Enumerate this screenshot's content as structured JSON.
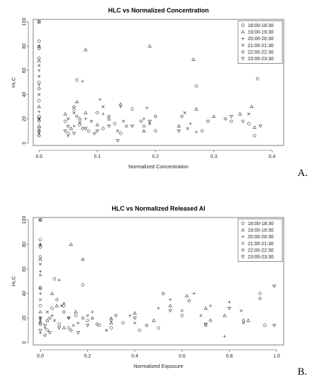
{
  "chart_data": [
    {
      "type": "scatter",
      "title": "HLC vs Normalized Concentration",
      "xlabel": "Normalized Concentration",
      "ylabel": "HLC",
      "xlim": [
        -0.01,
        0.42
      ],
      "ylim": [
        -2,
        102
      ],
      "xticks": [
        0.0,
        0.1,
        0.2,
        0.3,
        0.4
      ],
      "xtick_labels": [
        "0.0",
        "0.1",
        "0.2",
        "0.3",
        "0.4"
      ],
      "yticks": [
        0,
        20,
        40,
        60,
        80,
        100
      ],
      "ytick_labels": [
        "0",
        "20",
        "40",
        "60",
        "80",
        "100"
      ],
      "legend_position": "top-right",
      "panel_label": "A.",
      "series": [
        {
          "name": "18:00-18:30",
          "marker": "circle",
          "points": [
            [
              0,
              84
            ],
            [
              0,
              70
            ],
            [
              0,
              50
            ],
            [
              0,
              35
            ],
            [
              0,
              22
            ],
            [
              0,
              10
            ],
            [
              0.045,
              18
            ],
            [
              0.05,
              8
            ],
            [
              0.06,
              28
            ],
            [
              0.065,
              52
            ],
            [
              0.07,
              15
            ],
            [
              0.085,
              10
            ],
            [
              0.1,
              25
            ],
            [
              0.11,
              12
            ],
            [
              0.13,
              16
            ],
            [
              0.14,
              8
            ],
            [
              0.16,
              28
            ],
            [
              0.18,
              14
            ],
            [
              0.2,
              10
            ],
            [
              0.27,
              47
            ],
            [
              0.28,
              10
            ],
            [
              0.33,
              18
            ],
            [
              0.36,
              16
            ],
            [
              0.375,
              53
            ],
            [
              0.37,
              6
            ]
          ]
        },
        {
          "name": "19:00-19:30",
          "marker": "triangle-up",
          "points": [
            [
              0,
              100
            ],
            [
              0,
              80
            ],
            [
              0,
              68
            ],
            [
              0,
              30
            ],
            [
              0,
              14
            ],
            [
              0.045,
              24
            ],
            [
              0.055,
              12
            ],
            [
              0.065,
              34
            ],
            [
              0.07,
              20
            ],
            [
              0.08,
              77
            ],
            [
              0.08,
              25
            ],
            [
              0.1,
              15
            ],
            [
              0.12,
              20
            ],
            [
              0.14,
              32
            ],
            [
              0.19,
              80
            ],
            [
              0.18,
              10
            ],
            [
              0.24,
              14
            ],
            [
              0.265,
              69
            ],
            [
              0.27,
              28
            ],
            [
              0.3,
              22
            ],
            [
              0.345,
              24
            ],
            [
              0.365,
              30
            ],
            [
              0.37,
              13
            ]
          ]
        },
        {
          "name": "20:00-20:30",
          "marker": "plus",
          "points": [
            [
              0,
              80
            ],
            [
              0,
              60
            ],
            [
              0,
              48
            ],
            [
              0,
              26
            ],
            [
              0,
              10
            ],
            [
              0.05,
              6
            ],
            [
              0.06,
              14
            ],
            [
              0.075,
              51
            ],
            [
              0.08,
              20
            ],
            [
              0.105,
              36
            ],
            [
              0.11,
              24
            ],
            [
              0.14,
              30
            ],
            [
              0.185,
              29
            ],
            [
              0.18,
              20
            ],
            [
              0.26,
              16
            ],
            [
              0.27,
              9
            ]
          ]
        },
        {
          "name": "21:00-21:30",
          "marker": "x",
          "points": [
            [
              0,
              64
            ],
            [
              0,
              55
            ],
            [
              0,
              40
            ],
            [
              0,
              20
            ],
            [
              0,
              8
            ],
            [
              0.05,
              20
            ],
            [
              0.06,
              25
            ],
            [
              0.07,
              17
            ],
            [
              0.09,
              18
            ],
            [
              0.11,
              30
            ],
            [
              0.135,
              10
            ],
            [
              0.145,
              18
            ],
            [
              0.19,
              16
            ],
            [
              0.255,
              12
            ],
            [
              0.25,
              25
            ],
            [
              0.36,
              24
            ]
          ]
        },
        {
          "name": "22:00-22:30",
          "marker": "diamond",
          "points": [
            [
              0,
              78
            ],
            [
              0,
              45
            ],
            [
              0,
              18
            ],
            [
              0,
              6
            ],
            [
              0.05,
              14
            ],
            [
              0.06,
              30
            ],
            [
              0.065,
              22
            ],
            [
              0.075,
              12
            ],
            [
              0.095,
              8
            ],
            [
              0.12,
              22
            ],
            [
              0.15,
              14
            ],
            [
              0.175,
              18
            ],
            [
              0.2,
              22
            ],
            [
              0.245,
              22
            ],
            [
              0.29,
              18
            ],
            [
              0.32,
              20
            ],
            [
              0.35,
              18
            ]
          ]
        },
        {
          "name": "23:00-23:30",
          "marker": "triangle-down",
          "points": [
            [
              0,
              100
            ],
            [
              0,
              20
            ],
            [
              0,
              12
            ],
            [
              0.045,
              10
            ],
            [
              0.06,
              8
            ],
            [
              0.08,
              12
            ],
            [
              0.1,
              10
            ],
            [
              0.12,
              14
            ],
            [
              0.135,
              2
            ],
            [
              0.16,
              14
            ],
            [
              0.19,
              18
            ],
            [
              0.24,
              10
            ],
            [
              0.33,
              22
            ],
            [
              0.38,
              14
            ]
          ]
        }
      ]
    },
    {
      "type": "scatter",
      "title": "HLC vs Normalized Released AI",
      "xlabel": "Normalized Exposure",
      "ylabel": "HLC",
      "xlim": [
        -0.03,
        1.03
      ],
      "ylim": [
        -2,
        102
      ],
      "xticks": [
        0.0,
        0.2,
        0.4,
        0.6,
        0.8,
        1.0
      ],
      "xtick_labels": [
        "0.0",
        "0.2",
        "0.4",
        "0.6",
        "0.8",
        "1.0"
      ],
      "yticks": [
        0,
        20,
        40,
        60,
        80,
        100
      ],
      "ytick_labels": [
        "0",
        "20",
        "40",
        "60",
        "80",
        "100"
      ],
      "legend_position": "top-right",
      "panel_label": "B.",
      "series": [
        {
          "name": "18:00-18:30",
          "marker": "circle",
          "points": [
            [
              0,
              84
            ],
            [
              0,
              70
            ],
            [
              0,
              45
            ],
            [
              0,
              30
            ],
            [
              0,
              15
            ],
            [
              0.03,
              10
            ],
            [
              0.05,
              28
            ],
            [
              0.06,
              52
            ],
            [
              0.08,
              15
            ],
            [
              0.1,
              30
            ],
            [
              0.12,
              12
            ],
            [
              0.15,
              22
            ],
            [
              0.18,
              47
            ],
            [
              0.2,
              18
            ],
            [
              0.25,
              14
            ],
            [
              0.3,
              12
            ],
            [
              0.35,
              16
            ],
            [
              0.42,
              10
            ],
            [
              0.5,
              12
            ],
            [
              0.6,
              22
            ],
            [
              0.7,
              14
            ],
            [
              0.95,
              14
            ],
            [
              0.93,
              40
            ]
          ]
        },
        {
          "name": "19:00-19:30",
          "marker": "triangle-up",
          "points": [
            [
              0,
              100
            ],
            [
              0,
              80
            ],
            [
              0,
              68
            ],
            [
              0,
              25
            ],
            [
              0.03,
              18
            ],
            [
              0.05,
              40
            ],
            [
              0.07,
              30
            ],
            [
              0.1,
              12
            ],
            [
              0.13,
              80
            ],
            [
              0.15,
              25
            ],
            [
              0.18,
              68
            ],
            [
              0.22,
              20
            ],
            [
              0.3,
              16
            ],
            [
              0.4,
              24
            ],
            [
              0.48,
              18
            ],
            [
              0.55,
              30
            ],
            [
              0.62,
              38
            ],
            [
              0.7,
              28
            ],
            [
              0.78,
              22
            ],
            [
              0.88,
              18
            ]
          ]
        },
        {
          "name": "20:00-20:30",
          "marker": "plus",
          "points": [
            [
              0,
              80
            ],
            [
              0,
              58
            ],
            [
              0,
              40
            ],
            [
              0,
              20
            ],
            [
              0,
              8
            ],
            [
              0.02,
              12
            ],
            [
              0.05,
              22
            ],
            [
              0.08,
              51
            ],
            [
              0.1,
              32
            ],
            [
              0.12,
              20
            ],
            [
              0.16,
              16
            ],
            [
              0.22,
              25
            ],
            [
              0.3,
              20
            ],
            [
              0.38,
              22
            ],
            [
              0.5,
              28
            ],
            [
              0.55,
              35
            ],
            [
              0.65,
              40
            ],
            [
              0.72,
              30
            ],
            [
              0.8,
              33
            ],
            [
              0.78,
              5
            ]
          ]
        },
        {
          "name": "21:00-21:30",
          "marker": "x",
          "points": [
            [
              0,
              64
            ],
            [
              0,
              55
            ],
            [
              0,
              35
            ],
            [
              0,
              18
            ],
            [
              0.03,
              25
            ],
            [
              0.06,
              18
            ],
            [
              0.09,
              30
            ],
            [
              0.14,
              14
            ],
            [
              0.2,
              22
            ],
            [
              0.28,
              10
            ],
            [
              0.4,
              16
            ],
            [
              0.6,
              26
            ],
            [
              0.68,
              22
            ],
            [
              0.85,
              26
            ],
            [
              0.86,
              16
            ]
          ]
        },
        {
          "name": "22:00-22:30",
          "marker": "diamond",
          "points": [
            [
              0,
              78
            ],
            [
              0,
              44
            ],
            [
              0,
              16
            ],
            [
              0.02,
              6
            ],
            [
              0.04,
              20
            ],
            [
              0.07,
              35
            ],
            [
              0.1,
              25
            ],
            [
              0.13,
              10
            ],
            [
              0.18,
              20
            ],
            [
              0.24,
              15
            ],
            [
              0.32,
              22
            ],
            [
              0.45,
              14
            ],
            [
              0.52,
              40
            ],
            [
              0.63,
              34
            ],
            [
              0.72,
              18
            ],
            [
              0.86,
              18
            ],
            [
              0.93,
              36
            ]
          ]
        },
        {
          "name": "23:00-23:30",
          "marker": "triangle-down",
          "points": [
            [
              0,
              100
            ],
            [
              0,
              20
            ],
            [
              0,
              10
            ],
            [
              0.02,
              14
            ],
            [
              0.04,
              8
            ],
            [
              0.08,
              12
            ],
            [
              0.12,
              20
            ],
            [
              0.16,
              8
            ],
            [
              0.2,
              14
            ],
            [
              0.3,
              18
            ],
            [
              0.4,
              20
            ],
            [
              0.55,
              26
            ],
            [
              0.7,
              15
            ],
            [
              0.8,
              28
            ],
            [
              0.99,
              46
            ],
            [
              0.99,
              14
            ]
          ]
        }
      ]
    }
  ]
}
